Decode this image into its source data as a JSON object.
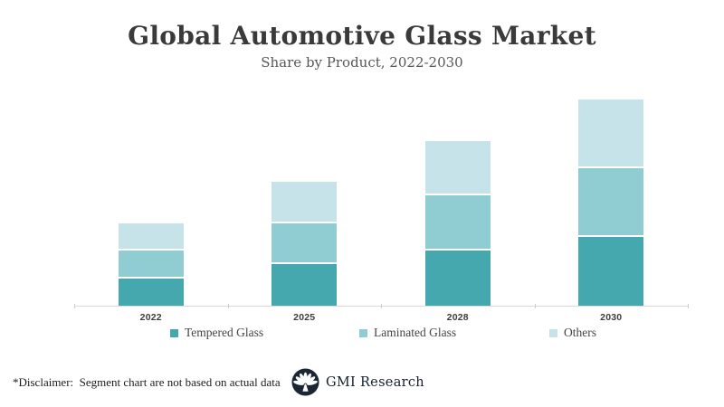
{
  "header": {
    "title": "Global Automotive Glass Market",
    "subtitle": "Share by Product, 2022-2030"
  },
  "chart_data": {
    "type": "bar",
    "stacked": true,
    "title": "Global Automotive Glass Market",
    "subtitle": "Share by Product, 2022-2030",
    "categories": [
      "2022",
      "2025",
      "2028",
      "2030"
    ],
    "series": [
      {
        "name": "Tempered Glass",
        "color": "#44a8ae",
        "values": [
          10,
          15,
          20,
          25
        ]
      },
      {
        "name": "Laminated Glass",
        "color": "#8fcdd3",
        "values": [
          10,
          15,
          20,
          25
        ]
      },
      {
        "name": "Others",
        "color": "#c6e3e9",
        "values": [
          10,
          15,
          20,
          25
        ]
      }
    ],
    "xlabel": "",
    "ylabel": "",
    "ylim": [
      0,
      80
    ],
    "grid": false,
    "legend_position": "bottom",
    "axis_color": "#dadada",
    "separator_color": "#ffffff"
  },
  "footer": {
    "disclaimer": "*Disclaimer:  Segment chart are not based on actual data",
    "logo_icon": "palmette-fan-icon",
    "logo_text": "GMI Research",
    "logo_color": "#1b2533"
  }
}
